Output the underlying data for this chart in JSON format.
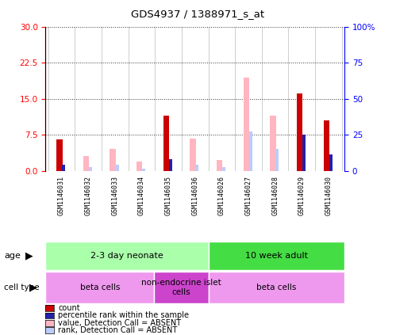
{
  "title": "GDS4937 / 1388971_s_at",
  "samples": [
    "GSM1146031",
    "GSM1146032",
    "GSM1146033",
    "GSM1146034",
    "GSM1146035",
    "GSM1146036",
    "GSM1146026",
    "GSM1146027",
    "GSM1146028",
    "GSM1146029",
    "GSM1146030"
  ],
  "count_values": [
    6.5,
    0.0,
    0.0,
    0.0,
    11.5,
    0.0,
    0.0,
    0.0,
    0.0,
    16.2,
    10.5
  ],
  "rank_values": [
    1.2,
    0.0,
    0.0,
    0.0,
    2.5,
    0.0,
    0.0,
    0.0,
    0.0,
    7.5,
    3.5
  ],
  "absent_value_values": [
    0.0,
    3.1,
    4.5,
    2.0,
    0.0,
    6.8,
    2.2,
    19.5,
    11.5,
    0.0,
    0.0
  ],
  "absent_rank_values": [
    0.0,
    0.8,
    1.2,
    0.5,
    0.0,
    1.2,
    0.8,
    8.2,
    4.5,
    0.0,
    0.0
  ],
  "ylim_left": [
    0,
    30
  ],
  "ylim_right": [
    0,
    100
  ],
  "yticks_left": [
    0,
    7.5,
    15,
    22.5,
    30
  ],
  "yticks_right": [
    0,
    25,
    50,
    75,
    100
  ],
  "age_groups": [
    {
      "label": "2-3 day neonate",
      "start": 0,
      "end": 6,
      "color": "#AAFFAA"
    },
    {
      "label": "10 week adult",
      "start": 6,
      "end": 11,
      "color": "#44DD44"
    }
  ],
  "cell_type_groups": [
    {
      "label": "beta cells",
      "start": 0,
      "end": 4,
      "color": "#EE99EE"
    },
    {
      "label": "non-endocrine islet\ncells",
      "start": 4,
      "end": 6,
      "color": "#CC44CC"
    },
    {
      "label": "beta cells",
      "start": 6,
      "end": 11,
      "color": "#EE99EE"
    }
  ],
  "count_color": "#CC0000",
  "rank_color": "#2222AA",
  "absent_value_color": "#FFB6C1",
  "absent_rank_color": "#BBCCFF",
  "plot_bg_color": "#FFFFFF",
  "sample_bg_color": "#DDDDDD",
  "grid_color": "#333333",
  "bg_color": "#FFFFFF",
  "legend_items": [
    {
      "label": "count",
      "color": "#CC0000"
    },
    {
      "label": "percentile rank within the sample",
      "color": "#2222AA"
    },
    {
      "label": "value, Detection Call = ABSENT",
      "color": "#FFB6C1"
    },
    {
      "label": "rank, Detection Call = ABSENT",
      "color": "#BBCCFF"
    }
  ]
}
